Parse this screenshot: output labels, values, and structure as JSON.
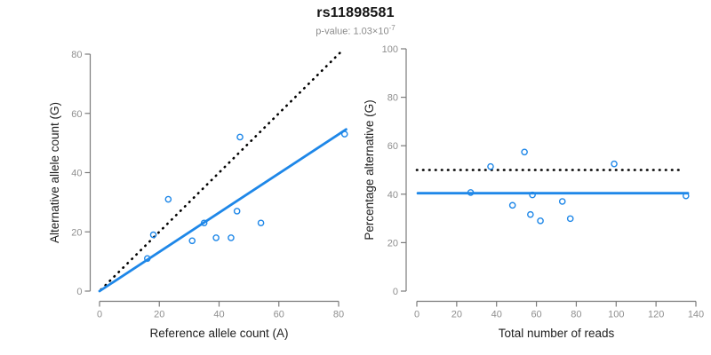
{
  "header": {
    "title": "rs11898581",
    "pvalue_prefix": "p-value: 1.03×10",
    "pvalue_exponent": "-7"
  },
  "colors": {
    "accent_blue": "#1E87E8",
    "dotted_black": "#000000",
    "axis_line": "#7b7b7b",
    "tick_label": "#8f8f8f",
    "axis_label": "#1f1f1f",
    "subtitle_gray": "#8c8c8c"
  },
  "chart_data": [
    {
      "type": "scatter",
      "name": "allele-count-scatter",
      "xlabel": "Reference allele count (A)",
      "ylabel": "Alternative allele count (G)",
      "xlim": [
        0,
        80
      ],
      "ylim": [
        0,
        80
      ],
      "xticks": [
        0,
        20,
        40,
        60,
        80
      ],
      "yticks": [
        0,
        20,
        40,
        60,
        80
      ],
      "grid": false,
      "marker": {
        "shape": "open-circle",
        "color": "#1E87E8"
      },
      "points": [
        [
          16,
          11
        ],
        [
          18,
          19
        ],
        [
          23,
          31
        ],
        [
          31,
          17
        ],
        [
          35,
          23
        ],
        [
          39,
          18
        ],
        [
          44,
          18
        ],
        [
          46,
          27
        ],
        [
          47,
          52
        ],
        [
          54,
          23
        ],
        [
          82,
          53
        ]
      ],
      "lines": [
        {
          "name": "identity-line",
          "style": "dotted",
          "color": "#000000",
          "x1": 0.5,
          "y1": 0.5,
          "x2": 81.7,
          "y2": 81.7
        },
        {
          "name": "regression-line",
          "style": "solid",
          "color": "#1E87E8",
          "x1": 0,
          "y1": 0,
          "x2": 82.5,
          "y2": 54.6
        }
      ]
    },
    {
      "type": "scatter",
      "name": "percentage-scatter",
      "xlabel": "Total number of reads",
      "ylabel": "Percentage alternative (G)",
      "xlim": [
        0,
        140
      ],
      "ylim": [
        0,
        100
      ],
      "xticks": [
        0,
        20,
        40,
        60,
        80,
        100,
        120,
        140
      ],
      "yticks": [
        0,
        20,
        40,
        60,
        80,
        100
      ],
      "grid": false,
      "marker": {
        "shape": "open-circle",
        "color": "#1E87E8"
      },
      "points": [
        [
          27,
          40.7
        ],
        [
          37,
          51.4
        ],
        [
          48,
          35.4
        ],
        [
          54,
          57.4
        ],
        [
          57,
          31.6
        ],
        [
          58,
          39.7
        ],
        [
          62,
          29.0
        ],
        [
          73,
          37.0
        ],
        [
          77,
          29.9
        ],
        [
          99,
          52.5
        ],
        [
          135,
          39.3
        ]
      ],
      "lines": [
        {
          "name": "null-50pct-line",
          "style": "dotted",
          "color": "#000000",
          "x1": 0,
          "y1": 50,
          "x2": 133.5,
          "y2": 50
        },
        {
          "name": "fit-line",
          "style": "solid",
          "color": "#1E87E8",
          "x1": 0.5,
          "y1": 40.4,
          "x2": 136,
          "y2": 40.4
        }
      ]
    }
  ]
}
